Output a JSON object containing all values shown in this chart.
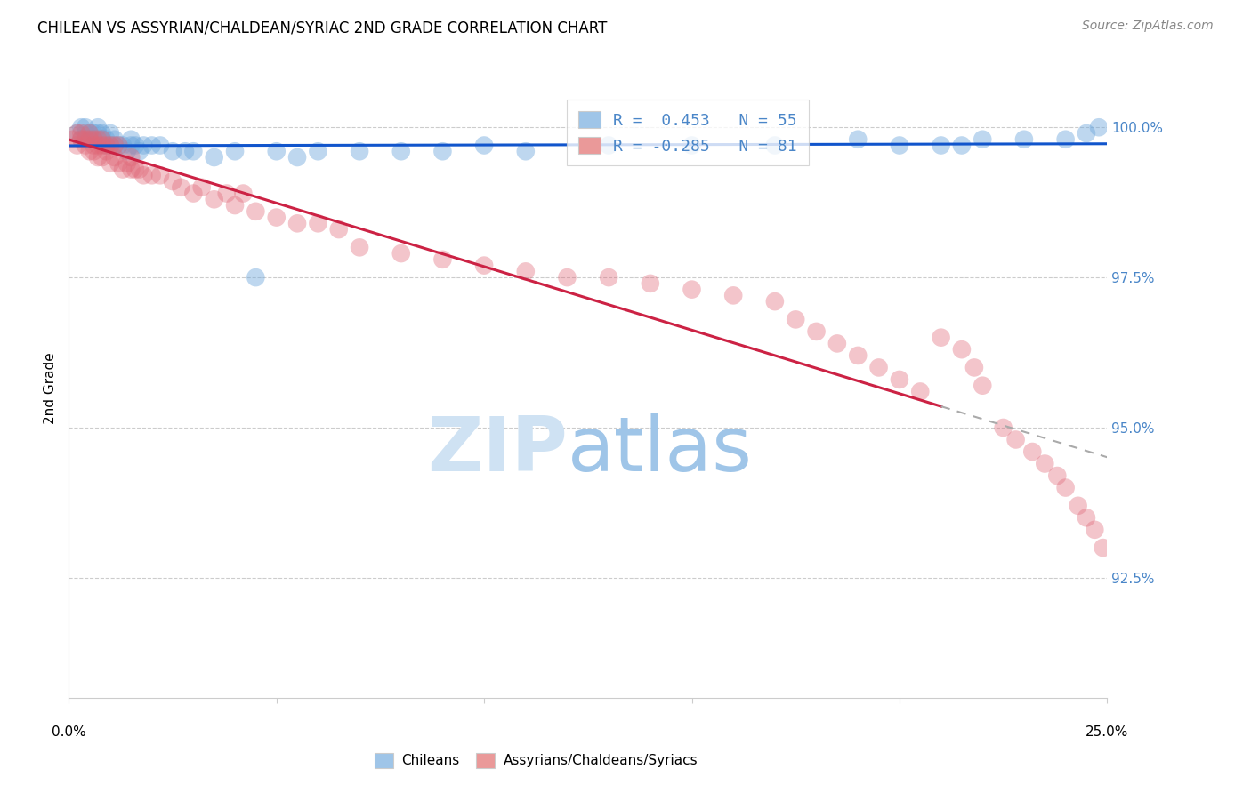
{
  "title": "CHILEAN VS ASSYRIAN/CHALDEAN/SYRIAC 2ND GRADE CORRELATION CHART",
  "source": "Source: ZipAtlas.com",
  "ylabel": "2nd Grade",
  "ytick_labels": [
    "92.5%",
    "95.0%",
    "97.5%",
    "100.0%"
  ],
  "ytick_values": [
    0.925,
    0.95,
    0.975,
    1.0
  ],
  "xrange": [
    0.0,
    0.25
  ],
  "yrange": [
    0.905,
    1.008
  ],
  "legend_blue_label": "R =  0.453   N = 55",
  "legend_pink_label": "R = -0.285   N = 81",
  "legend_blue_color": "#9fc5e8",
  "legend_pink_color": "#ea9999",
  "blue_scatter_color": "#6fa8dc",
  "pink_scatter_color": "#e06878",
  "trendline_blue_color": "#1155cc",
  "trendline_pink_color": "#cc2244",
  "trendline_dashed_color": "#aaaaaa",
  "watermark_zip_color": "#cfe2f3",
  "watermark_atlas_color": "#9fc5e8",
  "background_color": "#ffffff",
  "blue_R": 0.453,
  "pink_R": -0.285,
  "blue_N": 55,
  "pink_N": 81,
  "blue_scatter_x": [
    0.002,
    0.003,
    0.003,
    0.004,
    0.004,
    0.005,
    0.005,
    0.006,
    0.006,
    0.007,
    0.007,
    0.008,
    0.008,
    0.009,
    0.009,
    0.01,
    0.01,
    0.011,
    0.011,
    0.012,
    0.013,
    0.014,
    0.015,
    0.015,
    0.016,
    0.017,
    0.018,
    0.02,
    0.022,
    0.025,
    0.028,
    0.03,
    0.035,
    0.04,
    0.045,
    0.05,
    0.055,
    0.06,
    0.07,
    0.08,
    0.09,
    0.1,
    0.11,
    0.13,
    0.15,
    0.17,
    0.19,
    0.2,
    0.21,
    0.215,
    0.22,
    0.23,
    0.24,
    0.245,
    0.248
  ],
  "blue_scatter_y": [
    0.999,
    0.998,
    1.0,
    0.999,
    1.0,
    0.998,
    0.999,
    0.998,
    0.999,
    0.999,
    1.0,
    0.998,
    0.999,
    0.997,
    0.998,
    0.997,
    0.999,
    0.997,
    0.998,
    0.997,
    0.997,
    0.996,
    0.997,
    0.998,
    0.997,
    0.996,
    0.997,
    0.997,
    0.997,
    0.996,
    0.996,
    0.996,
    0.995,
    0.996,
    0.975,
    0.996,
    0.995,
    0.996,
    0.996,
    0.996,
    0.996,
    0.997,
    0.996,
    0.997,
    0.997,
    0.997,
    0.998,
    0.997,
    0.997,
    0.997,
    0.998,
    0.998,
    0.998,
    0.999,
    1.0
  ],
  "pink_scatter_x": [
    0.001,
    0.002,
    0.002,
    0.003,
    0.003,
    0.004,
    0.004,
    0.005,
    0.005,
    0.005,
    0.006,
    0.006,
    0.006,
    0.007,
    0.007,
    0.007,
    0.008,
    0.008,
    0.008,
    0.009,
    0.009,
    0.01,
    0.01,
    0.011,
    0.011,
    0.012,
    0.012,
    0.013,
    0.014,
    0.015,
    0.015,
    0.016,
    0.017,
    0.018,
    0.02,
    0.022,
    0.025,
    0.027,
    0.03,
    0.032,
    0.035,
    0.038,
    0.04,
    0.042,
    0.045,
    0.05,
    0.055,
    0.06,
    0.065,
    0.07,
    0.08,
    0.09,
    0.1,
    0.11,
    0.12,
    0.13,
    0.14,
    0.15,
    0.16,
    0.17,
    0.175,
    0.18,
    0.185,
    0.19,
    0.195,
    0.2,
    0.205,
    0.21,
    0.215,
    0.218,
    0.22,
    0.225,
    0.228,
    0.232,
    0.235,
    0.238,
    0.24,
    0.243,
    0.245,
    0.247,
    0.249
  ],
  "pink_scatter_y": [
    0.998,
    0.999,
    0.997,
    0.998,
    0.999,
    0.997,
    0.998,
    0.996,
    0.998,
    0.999,
    0.996,
    0.997,
    0.998,
    0.995,
    0.997,
    0.998,
    0.995,
    0.997,
    0.998,
    0.996,
    0.997,
    0.994,
    0.997,
    0.995,
    0.997,
    0.994,
    0.997,
    0.993,
    0.994,
    0.993,
    0.995,
    0.993,
    0.993,
    0.992,
    0.992,
    0.992,
    0.991,
    0.99,
    0.989,
    0.99,
    0.988,
    0.989,
    0.987,
    0.989,
    0.986,
    0.985,
    0.984,
    0.984,
    0.983,
    0.98,
    0.979,
    0.978,
    0.977,
    0.976,
    0.975,
    0.975,
    0.974,
    0.973,
    0.972,
    0.971,
    0.968,
    0.966,
    0.964,
    0.962,
    0.96,
    0.958,
    0.956,
    0.965,
    0.963,
    0.96,
    0.957,
    0.95,
    0.948,
    0.946,
    0.944,
    0.942,
    0.94,
    0.937,
    0.935,
    0.933,
    0.93
  ]
}
